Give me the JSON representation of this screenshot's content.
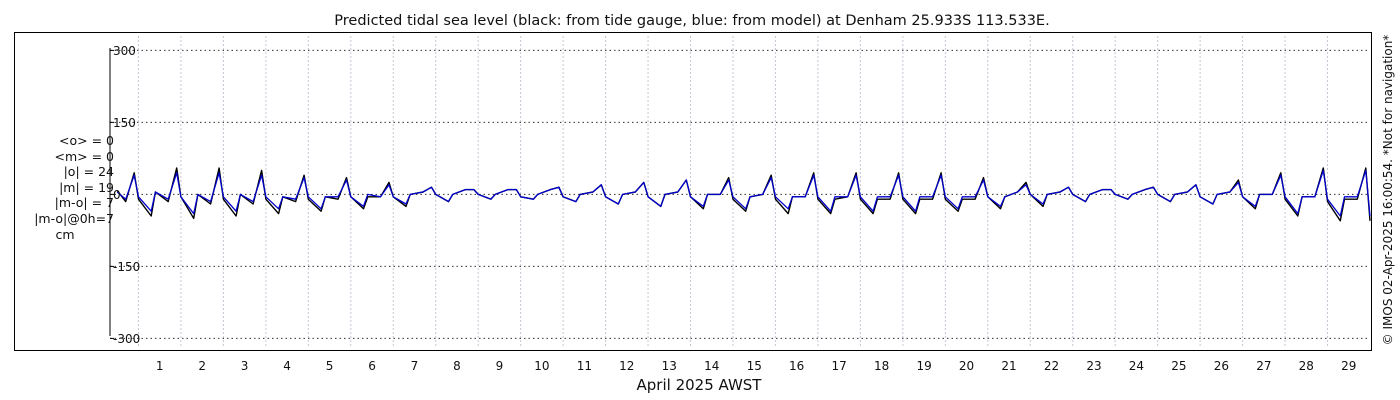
{
  "chart_data": {
    "type": "line",
    "title": "Predicted tidal sea level (black: from tide gauge, blue: from model) at Denham 25.933S 113.533E.",
    "xlabel": "April 2025 AWST",
    "ylabel": "",
    "x_ticks": [
      "1",
      "2",
      "3",
      "4",
      "5",
      "6",
      "7",
      "8",
      "9",
      "10",
      "11",
      "12",
      "13",
      "14",
      "15",
      "16",
      "17",
      "18",
      "19",
      "20",
      "21",
      "22",
      "23",
      "24",
      "25",
      "26",
      "27",
      "28",
      "29"
    ],
    "xlim": [
      0.33,
      30.0
    ],
    "ylim": [
      -320,
      330
    ],
    "y_ticks": [
      300,
      150,
      0,
      -150,
      -300
    ],
    "y_tick_labels": [
      "300",
      "150",
      "0",
      "-150",
      "-300"
    ],
    "grid": true,
    "legend": "none",
    "stats": [
      "<o> = 0",
      "<m> = 0",
      "|o| = 24",
      "|m| = 19",
      "|m-o| = 7",
      "|m-o|@0h=7",
      "cm"
    ],
    "copyright": "© IMOS 02-Apr-2025 16:00:54. *Not for navigation*",
    "series": [
      {
        "color": "#000000",
        "x": [
          0.5,
          0.7,
          0.9,
          1.0,
          1.3,
          1.4,
          1.7,
          1.9,
          2.0,
          2.3,
          2.4,
          2.7,
          2.9,
          3.0,
          3.3,
          3.4,
          3.7,
          3.9,
          4.0,
          4.3,
          4.4,
          4.7,
          4.9,
          5.0,
          5.3,
          5.4,
          5.7,
          5.9,
          6.0,
          6.3,
          6.4,
          6.7,
          6.9,
          7.0,
          7.3,
          7.4,
          7.7,
          7.9,
          8.0,
          8.3,
          8.4,
          8.7,
          8.9,
          9.0,
          9.3,
          9.4,
          9.7,
          9.9,
          10.0,
          10.3,
          10.4,
          10.7,
          10.9,
          11.0,
          11.3,
          11.4,
          11.7,
          11.9,
          12.0,
          12.3,
          12.4,
          12.7,
          12.9,
          13.0,
          13.3,
          13.4,
          13.7,
          13.9,
          14.0,
          14.3,
          14.4,
          14.7,
          14.9,
          15.0,
          15.3,
          15.4,
          15.7,
          15.9,
          16.0,
          16.3,
          16.4,
          16.7,
          16.9,
          17.0,
          17.3,
          17.4,
          17.7,
          17.9,
          18.0,
          18.3,
          18.4,
          18.7,
          18.9,
          19.0,
          19.3,
          19.4,
          19.7,
          19.9,
          20.0,
          20.3,
          20.4,
          20.7,
          20.9,
          21.0,
          21.3,
          21.4,
          21.7,
          21.9,
          22.0,
          22.3,
          22.4,
          22.7,
          22.9,
          23.0,
          23.3,
          23.4,
          23.7,
          23.9,
          24.0,
          24.3,
          24.4,
          24.7,
          24.9,
          25.0,
          25.3,
          25.4,
          25.7,
          25.9,
          26.0,
          26.3,
          26.4,
          26.7,
          26.9,
          27.0,
          27.3,
          27.4,
          27.7,
          27.9,
          28.0,
          28.3,
          28.4,
          28.7,
          28.9,
          29.0,
          29.3,
          29.4,
          29.7,
          29.9,
          30.0
        ],
        "y": [
          8,
          -15,
          45,
          -10,
          -45,
          5,
          -15,
          55,
          -5,
          -50,
          0,
          -20,
          55,
          -10,
          -45,
          0,
          -20,
          50,
          -10,
          -40,
          -5,
          -15,
          40,
          -10,
          -35,
          -5,
          -10,
          35,
          -5,
          -30,
          -5,
          -5,
          25,
          -5,
          -25,
          0,
          5,
          15,
          0,
          -15,
          0,
          10,
          10,
          0,
          -10,
          0,
          10,
          10,
          -5,
          -10,
          0,
          10,
          15,
          -5,
          -15,
          0,
          5,
          20,
          -5,
          -20,
          0,
          5,
          25,
          -5,
          -25,
          0,
          5,
          30,
          -5,
          -30,
          0,
          0,
          35,
          -10,
          -35,
          -5,
          0,
          40,
          -10,
          -40,
          -5,
          -5,
          45,
          -10,
          -40,
          -10,
          -5,
          45,
          -10,
          -40,
          -10,
          -10,
          45,
          -10,
          -40,
          -10,
          -10,
          45,
          -10,
          -35,
          -10,
          -10,
          35,
          -5,
          -30,
          -5,
          5,
          25,
          0,
          -25,
          0,
          5,
          15,
          0,
          -15,
          0,
          10,
          10,
          0,
          -10,
          0,
          10,
          15,
          0,
          -15,
          0,
          5,
          20,
          -5,
          -20,
          0,
          5,
          30,
          -5,
          -30,
          0,
          0,
          45,
          -10,
          -45,
          -5,
          -5,
          55,
          -15,
          -55,
          -10,
          -10,
          55,
          -55
        ]
      },
      {
        "color": "#0000cc",
        "x": [
          0.5,
          0.7,
          0.9,
          1.0,
          1.3,
          1.4,
          1.7,
          1.9,
          2.0,
          2.3,
          2.4,
          2.7,
          2.9,
          3.0,
          3.3,
          3.4,
          3.7,
          3.9,
          4.0,
          4.3,
          4.4,
          4.7,
          4.9,
          5.0,
          5.3,
          5.4,
          5.7,
          5.9,
          6.0,
          6.3,
          6.4,
          6.7,
          6.9,
          7.0,
          7.3,
          7.4,
          7.7,
          7.9,
          8.0,
          8.3,
          8.4,
          8.7,
          8.9,
          9.0,
          9.3,
          9.4,
          9.7,
          9.9,
          10.0,
          10.3,
          10.4,
          10.7,
          10.9,
          11.0,
          11.3,
          11.4,
          11.7,
          11.9,
          12.0,
          12.3,
          12.4,
          12.7,
          12.9,
          13.0,
          13.3,
          13.4,
          13.7,
          13.9,
          14.0,
          14.3,
          14.4,
          14.7,
          14.9,
          15.0,
          15.3,
          15.4,
          15.7,
          15.9,
          16.0,
          16.3,
          16.4,
          16.7,
          16.9,
          17.0,
          17.3,
          17.4,
          17.7,
          17.9,
          18.0,
          18.3,
          18.4,
          18.7,
          18.9,
          19.0,
          19.3,
          19.4,
          19.7,
          19.9,
          20.0,
          20.3,
          20.4,
          20.7,
          20.9,
          21.0,
          21.3,
          21.4,
          21.7,
          21.9,
          22.0,
          22.3,
          22.4,
          22.7,
          22.9,
          23.0,
          23.3,
          23.4,
          23.7,
          23.9,
          24.0,
          24.3,
          24.4,
          24.7,
          24.9,
          25.0,
          25.3,
          25.4,
          25.7,
          25.9,
          26.0,
          26.3,
          26.4,
          26.7,
          26.9,
          27.0,
          27.3,
          27.4,
          27.7,
          27.9,
          28.0,
          28.3,
          28.4,
          28.7,
          28.9,
          29.0,
          29.3,
          29.4,
          29.7,
          29.9,
          30.0
        ],
        "y": [
          5,
          -10,
          40,
          -5,
          -35,
          5,
          -10,
          45,
          -5,
          -40,
          0,
          -15,
          45,
          -5,
          -35,
          0,
          -15,
          40,
          -5,
          -30,
          -5,
          -10,
          35,
          -5,
          -30,
          -5,
          -5,
          30,
          -5,
          -25,
          0,
          -5,
          20,
          -5,
          -20,
          0,
          5,
          15,
          0,
          -15,
          0,
          10,
          10,
          0,
          -10,
          0,
          10,
          10,
          -5,
          -10,
          0,
          10,
          15,
          -5,
          -15,
          0,
          5,
          20,
          -5,
          -20,
          0,
          5,
          25,
          -5,
          -25,
          0,
          5,
          30,
          -5,
          -25,
          0,
          0,
          30,
          -5,
          -30,
          -5,
          0,
          35,
          -5,
          -30,
          -5,
          -5,
          40,
          -5,
          -35,
          -5,
          -5,
          40,
          -5,
          -35,
          -5,
          -5,
          40,
          -5,
          -35,
          -5,
          -5,
          40,
          -5,
          -30,
          -5,
          -5,
          30,
          -5,
          -25,
          -5,
          5,
          20,
          0,
          -20,
          0,
          5,
          15,
          0,
          -15,
          0,
          10,
          10,
          0,
          -10,
          0,
          10,
          15,
          0,
          -15,
          0,
          5,
          20,
          -5,
          -20,
          0,
          5,
          25,
          -5,
          -25,
          0,
          0,
          40,
          -5,
          -40,
          -5,
          -5,
          50,
          -10,
          -45,
          -5,
          -5,
          50,
          -45
        ]
      }
    ]
  }
}
